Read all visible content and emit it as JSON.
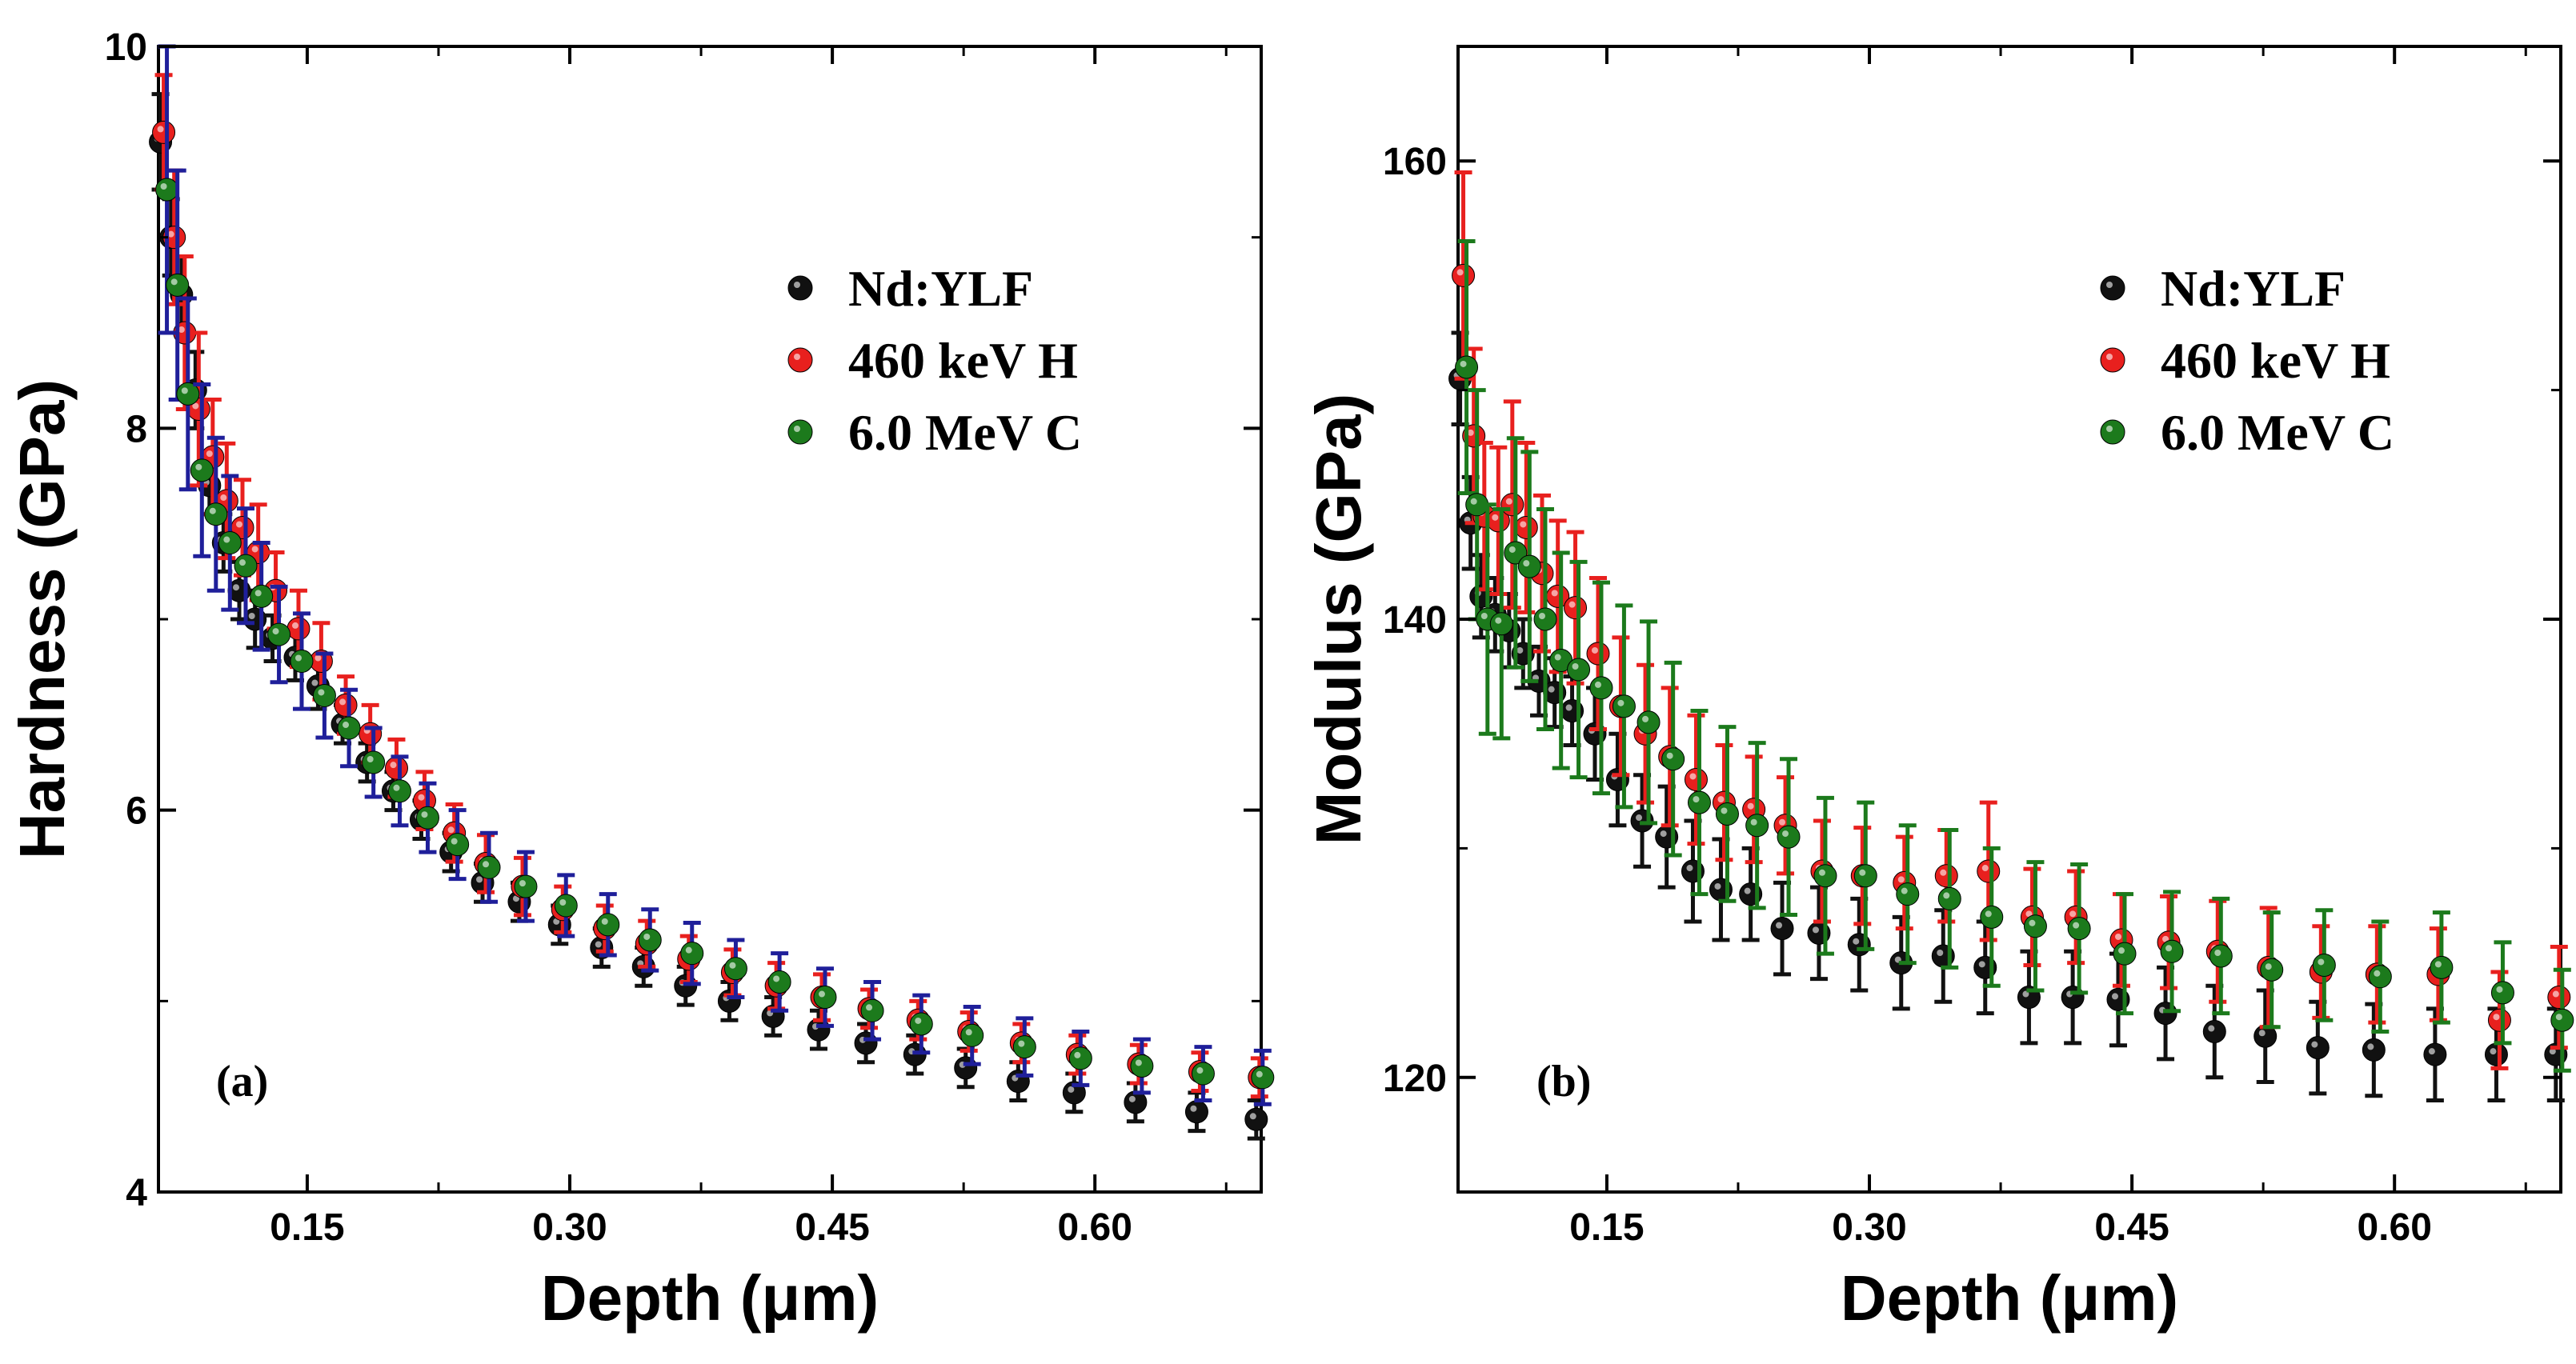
{
  "chart_data": [
    {
      "type": "scatter",
      "panel_label": "(a)",
      "xlabel": "Depth (μm)",
      "ylabel": "Hardness (GPa)",
      "xlim": [
        0.065,
        0.695
      ],
      "ylim": [
        4,
        10
      ],
      "xticks": [
        0.15,
        0.3,
        0.45,
        0.6
      ],
      "xtick_labels": [
        "0.15",
        "0.30",
        "0.45",
        "0.60"
      ],
      "yticks": [
        4,
        6,
        8,
        10
      ],
      "ytick_labels": [
        "4",
        "6",
        "8",
        "10"
      ],
      "legend_position": "top-right",
      "x": [
        0.068,
        0.074,
        0.08,
        0.088,
        0.096,
        0.104,
        0.113,
        0.122,
        0.132,
        0.145,
        0.158,
        0.172,
        0.186,
        0.201,
        0.217,
        0.234,
        0.252,
        0.273,
        0.296,
        0.32,
        0.344,
        0.368,
        0.393,
        0.418,
        0.444,
        0.471,
        0.499,
        0.528,
        0.558,
        0.59,
        0.625,
        0.66,
        0.694
      ],
      "series": [
        {
          "name": "Nd:YLF",
          "color": "#111111",
          "errbar_color": "#111111",
          "values": [
            9.5,
            9.0,
            8.7,
            8.2,
            7.7,
            7.4,
            7.15,
            7.0,
            6.9,
            6.8,
            6.65,
            6.45,
            6.25,
            6.1,
            5.95,
            5.78,
            5.62,
            5.52,
            5.4,
            5.28,
            5.18,
            5.08,
            5.0,
            4.92,
            4.85,
            4.78,
            4.72,
            4.65,
            4.58,
            4.52,
            4.47,
            4.42,
            4.38
          ],
          "errors": [
            0.25,
            0.2,
            0.2,
            0.2,
            0.15,
            0.15,
            0.15,
            0.15,
            0.12,
            0.12,
            0.12,
            0.1,
            0.1,
            0.1,
            0.1,
            0.1,
            0.1,
            0.1,
            0.1,
            0.1,
            0.1,
            0.1,
            0.1,
            0.1,
            0.1,
            0.1,
            0.1,
            0.1,
            0.1,
            0.1,
            0.1,
            0.1,
            0.1
          ]
        },
        {
          "name": "460 keV H",
          "color": "#e8201e",
          "errbar_color": "#e8201e",
          "values": [
            9.55,
            9.0,
            8.5,
            8.1,
            7.85,
            7.62,
            7.48,
            7.35,
            7.15,
            6.95,
            6.78,
            6.55,
            6.4,
            6.22,
            6.05,
            5.88,
            5.72,
            5.6,
            5.48,
            5.38,
            5.3,
            5.22,
            5.15,
            5.08,
            5.02,
            4.96,
            4.9,
            4.84,
            4.78,
            4.72,
            4.67,
            4.63,
            4.6
          ],
          "errors": [
            0.3,
            0.35,
            0.4,
            0.4,
            0.3,
            0.3,
            0.25,
            0.25,
            0.2,
            0.2,
            0.2,
            0.15,
            0.15,
            0.15,
            0.15,
            0.15,
            0.15,
            0.15,
            0.12,
            0.12,
            0.12,
            0.12,
            0.12,
            0.12,
            0.12,
            0.1,
            0.1,
            0.1,
            0.1,
            0.1,
            0.1,
            0.1,
            0.1
          ]
        },
        {
          "name": "6.0 MeV C",
          "color": "#1c7a1c",
          "errbar_color": "#1f1f9a",
          "values": [
            9.25,
            8.75,
            8.18,
            7.78,
            7.55,
            7.4,
            7.28,
            7.12,
            6.92,
            6.78,
            6.6,
            6.43,
            6.25,
            6.1,
            5.96,
            5.82,
            5.7,
            5.6,
            5.5,
            5.4,
            5.32,
            5.25,
            5.17,
            5.1,
            5.02,
            4.95,
            4.88,
            4.82,
            4.76,
            4.7,
            4.66,
            4.62,
            4.6
          ],
          "errors": [
            0.75,
            0.6,
            0.5,
            0.45,
            0.4,
            0.35,
            0.3,
            0.28,
            0.25,
            0.25,
            0.22,
            0.2,
            0.18,
            0.18,
            0.18,
            0.18,
            0.18,
            0.18,
            0.16,
            0.16,
            0.16,
            0.16,
            0.15,
            0.15,
            0.15,
            0.15,
            0.15,
            0.15,
            0.15,
            0.14,
            0.14,
            0.14,
            0.14
          ]
        }
      ]
    },
    {
      "type": "scatter",
      "panel_label": "(b)",
      "xlabel": "Depth (μm)",
      "ylabel": "Modulus (GPa)",
      "xlim": [
        0.065,
        0.695
      ],
      "ylim": [
        115,
        165
      ],
      "xticks": [
        0.15,
        0.3,
        0.45,
        0.6
      ],
      "xtick_labels": [
        "0.15",
        "0.30",
        "0.45",
        "0.60"
      ],
      "yticks": [
        120,
        140,
        160
      ],
      "ytick_labels": [
        "120",
        "140",
        "160"
      ],
      "legend_position": "top-right",
      "x": [
        0.068,
        0.074,
        0.08,
        0.088,
        0.096,
        0.104,
        0.113,
        0.122,
        0.132,
        0.145,
        0.158,
        0.172,
        0.186,
        0.201,
        0.217,
        0.234,
        0.252,
        0.273,
        0.296,
        0.32,
        0.344,
        0.368,
        0.393,
        0.418,
        0.444,
        0.471,
        0.499,
        0.528,
        0.558,
        0.59,
        0.625,
        0.66,
        0.694
      ],
      "series": [
        {
          "name": "Nd:YLF",
          "color": "#111111",
          "errbar_color": "#111111",
          "values": [
            150.5,
            144.2,
            141.0,
            140.2,
            139.5,
            138.5,
            137.3,
            136.8,
            136.0,
            135.0,
            133.0,
            131.2,
            130.5,
            129.0,
            128.2,
            128.0,
            126.5,
            126.3,
            125.8,
            125.0,
            125.3,
            124.8,
            123.5,
            123.5,
            123.4,
            122.8,
            122.0,
            121.8,
            121.3,
            121.2,
            121.0,
            121.0,
            121.0
          ],
          "errors": [
            2,
            2,
            1.8,
            1.6,
            1.6,
            1.5,
            1.5,
            1.5,
            1.5,
            2,
            2,
            2,
            2.2,
            2.2,
            2.2,
            2,
            2,
            2,
            2,
            2,
            2,
            2,
            2,
            2,
            2,
            2,
            2,
            2,
            2,
            2,
            2,
            2,
            2
          ]
        },
        {
          "name": "460 keV H",
          "color": "#e8201e",
          "errbar_color": "#e8201e",
          "values": [
            155.0,
            148.0,
            144.5,
            144.3,
            145.0,
            144.0,
            142.0,
            141.0,
            140.5,
            138.5,
            136.2,
            135.0,
            134.0,
            133.0,
            132.0,
            131.7,
            131.0,
            129.0,
            128.8,
            128.5,
            128.8,
            129.0,
            127.0,
            127.0,
            126.0,
            125.9,
            125.5,
            124.8,
            124.6,
            124.5,
            124.5,
            122.5,
            123.5
          ],
          "errors": [
            4.5,
            3.8,
            3.2,
            3.2,
            4.5,
            3.7,
            3.4,
            3.3,
            3.3,
            3.3,
            3,
            3,
            3,
            2.8,
            2.5,
            2.3,
            2.1,
            2.2,
            2.1,
            2,
            2,
            3,
            2.1,
            2,
            2,
            2,
            2.2,
            2.6,
            2,
            2.1,
            2,
            2.1,
            2.2
          ]
        },
        {
          "name": "6.0 MeV C",
          "color": "#1c7a1c",
          "errbar_color": "#1c7a1c",
          "values": [
            151.0,
            145.0,
            140.0,
            139.8,
            142.9,
            142.3,
            140.0,
            138.2,
            137.8,
            137.0,
            136.2,
            135.5,
            133.9,
            132.0,
            131.5,
            131.0,
            130.5,
            128.8,
            128.8,
            128.0,
            127.8,
            127.0,
            126.6,
            126.5,
            125.4,
            125.5,
            125.3,
            124.7,
            124.9,
            124.4,
            124.8,
            123.7,
            122.5
          ],
          "errors": [
            5.5,
            5,
            5,
            5,
            5,
            5,
            4.8,
            4.7,
            4.7,
            4.6,
            4.4,
            4.4,
            4.2,
            4,
            3.8,
            3.6,
            3.4,
            3.4,
            3.2,
            3,
            3,
            3,
            2.8,
            2.8,
            2.6,
            2.6,
            2.5,
            2.5,
            2.4,
            2.4,
            2.4,
            2.2,
            2.2
          ]
        }
      ]
    }
  ]
}
